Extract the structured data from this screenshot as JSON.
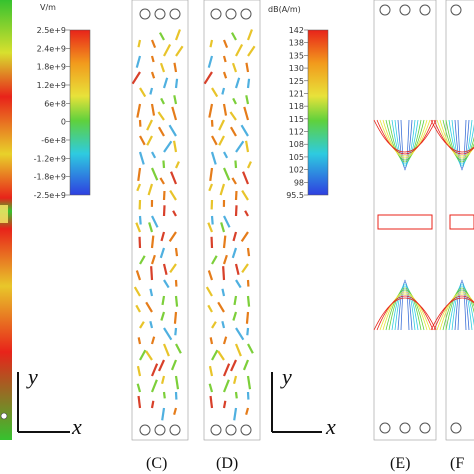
{
  "colorbar_left": {
    "unit": "V/m",
    "ticks": [
      "2.5e+9",
      "2.4e+9",
      "1.8e+9",
      "1.2e+9",
      "6e+8",
      "0",
      "-6e+8",
      "-1.2e+9",
      "-1.8e+9",
      "-2.5e+9"
    ]
  },
  "colorbar_right": {
    "unit": "dB(A/m)",
    "ticks": [
      "142",
      "138",
      "135",
      "130",
      "125",
      "121",
      "118",
      "115",
      "112",
      "108",
      "105",
      "102",
      "98",
      "95.5"
    ]
  },
  "panel_labels": {
    "c": "(C)",
    "d": "(D)",
    "e": "(E)",
    "f": "(F"
  },
  "axes": {
    "y": "y",
    "x": "x"
  },
  "colors": {
    "field_red": "#e8231a",
    "field_green": "#2ec63a",
    "arrow_orange": "#e57c1a",
    "arrow_green": "#7ccf3a",
    "contour_blue": "#3a6fd8"
  }
}
